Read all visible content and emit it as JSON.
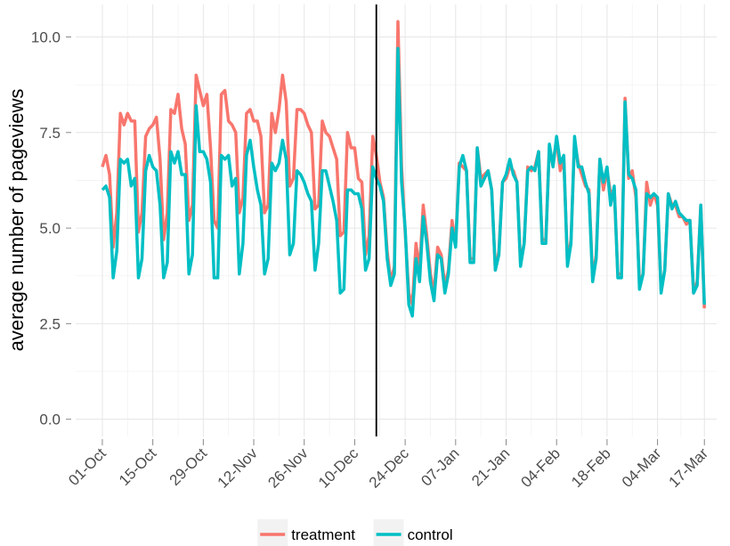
{
  "chart_data": {
    "type": "line",
    "y_label": "average number of pageviews",
    "x": [
      0,
      1,
      2,
      3,
      4,
      5,
      6,
      7,
      8,
      9,
      10,
      11,
      12,
      13,
      14,
      15,
      16,
      17,
      18,
      19,
      20,
      21,
      22,
      23,
      24,
      25,
      26,
      27,
      28,
      29,
      30,
      31,
      32,
      33,
      34,
      35,
      36,
      37,
      38,
      39,
      40,
      41,
      42,
      43,
      44,
      45,
      46,
      47,
      48,
      49,
      50,
      51,
      52,
      53,
      54,
      55,
      56,
      57,
      58,
      59,
      60,
      61,
      62,
      63,
      64,
      65,
      66,
      67,
      68,
      69,
      70,
      71,
      72,
      73,
      74,
      75,
      76,
      77,
      78,
      79,
      80,
      81,
      82,
      83,
      84,
      85,
      86,
      87,
      88,
      89,
      90,
      91,
      92,
      93,
      94,
      95,
      96,
      97,
      98,
      99,
      100,
      101,
      102,
      103,
      104,
      105,
      106,
      107,
      108,
      109,
      110,
      111,
      112,
      113,
      114,
      115,
      116,
      117,
      118,
      119,
      120,
      121,
      122,
      123,
      124,
      125,
      126,
      127,
      128,
      129,
      130,
      131,
      132,
      133,
      134,
      135,
      136,
      137,
      138,
      139,
      140,
      141,
      142,
      143,
      144,
      145,
      146,
      147,
      148,
      149,
      150,
      151,
      152,
      153,
      154,
      155,
      156,
      157,
      158,
      159,
      160,
      161,
      162,
      163,
      164,
      165,
      166,
      167
    ],
    "series": [
      {
        "name": "treatment",
        "color": "#F8766D",
        "values": [
          6.6,
          6.9,
          6.4,
          4.5,
          5.4,
          8.0,
          7.7,
          8.0,
          7.8,
          7.8,
          4.9,
          5.4,
          7.4,
          7.6,
          7.7,
          7.9,
          6.8,
          4.7,
          5.4,
          8.1,
          8.0,
          8.5,
          7.6,
          7.2,
          5.2,
          5.6,
          9.0,
          8.6,
          8.2,
          8.5,
          7.1,
          5.2,
          5.0,
          8.5,
          8.6,
          7.8,
          7.7,
          7.5,
          5.4,
          5.8,
          8.0,
          8.1,
          7.8,
          7.8,
          7.4,
          5.4,
          5.6,
          8.0,
          7.5,
          8.1,
          9.0,
          8.3,
          6.1,
          6.3,
          8.1,
          8.1,
          8.0,
          7.7,
          7.5,
          5.5,
          5.6,
          7.8,
          7.5,
          7.4,
          7.1,
          6.8,
          4.8,
          4.9,
          7.5,
          7.1,
          7.1,
          6.3,
          6.2,
          4.3,
          4.8,
          7.4,
          6.9,
          6.2,
          5.8,
          4.4,
          3.6,
          4.0,
          10.4,
          6.6,
          4.9,
          3.3,
          3.0,
          4.6,
          3.9,
          5.6,
          4.8,
          3.8,
          3.3,
          4.5,
          4.3,
          3.5,
          3.9,
          5.2,
          4.6,
          6.7,
          6.6,
          6.5,
          4.2,
          4.2,
          7.1,
          6.3,
          6.4,
          6.5,
          6.0,
          3.9,
          4.4,
          6.2,
          6.3,
          6.6,
          6.5,
          6.2,
          4.1,
          4.6,
          6.6,
          6.5,
          6.6,
          7.0,
          4.7,
          4.7,
          7.1,
          6.7,
          7.3,
          6.5,
          6.8,
          4.1,
          4.7,
          7.3,
          6.7,
          6.4,
          6.1,
          6.0,
          3.7,
          4.3,
          6.8,
          6.0,
          6.5,
          5.9,
          6.0,
          3.8,
          3.8,
          8.4,
          6.3,
          6.5,
          5.8,
          3.6,
          3.8,
          6.2,
          5.6,
          5.9,
          5.6,
          3.4,
          3.9,
          5.9,
          5.6,
          5.6,
          5.3,
          5.3,
          5.1,
          5.2,
          3.3,
          3.6,
          5.6,
          2.9
        ]
      },
      {
        "name": "control",
        "color": "#00BFC4",
        "values": [
          6.0,
          6.1,
          5.8,
          3.7,
          4.4,
          6.8,
          6.7,
          6.8,
          6.1,
          6.3,
          3.7,
          4.2,
          6.5,
          6.9,
          6.6,
          6.5,
          5.6,
          3.7,
          4.1,
          7.0,
          6.7,
          7.0,
          6.4,
          6.4,
          3.8,
          4.3,
          8.2,
          7.0,
          7.0,
          6.8,
          6.2,
          3.7,
          3.7,
          6.9,
          6.8,
          6.9,
          6.1,
          6.3,
          3.8,
          4.6,
          6.9,
          7.3,
          6.6,
          6.0,
          5.6,
          3.8,
          4.2,
          6.7,
          6.5,
          6.7,
          7.3,
          6.8,
          4.3,
          4.6,
          6.5,
          6.4,
          6.2,
          5.9,
          5.7,
          3.9,
          4.6,
          6.5,
          6.5,
          6.1,
          5.7,
          5.2,
          3.3,
          3.4,
          6.0,
          6.0,
          5.9,
          5.9,
          5.5,
          3.9,
          4.2,
          6.6,
          6.3,
          6.1,
          5.7,
          4.2,
          3.5,
          3.8,
          9.7,
          6.2,
          5.0,
          3.0,
          2.7,
          4.2,
          3.6,
          5.3,
          4.6,
          3.6,
          3.1,
          4.3,
          4.2,
          3.3,
          3.8,
          5.0,
          4.5,
          6.6,
          6.9,
          6.5,
          4.1,
          4.1,
          7.1,
          6.1,
          6.3,
          6.5,
          6.0,
          3.9,
          4.3,
          6.2,
          6.4,
          6.8,
          6.4,
          6.2,
          4.0,
          4.6,
          6.5,
          6.6,
          6.5,
          7.0,
          4.6,
          4.6,
          7.2,
          6.6,
          7.4,
          6.7,
          6.9,
          4.0,
          4.6,
          7.4,
          6.6,
          6.6,
          6.2,
          5.9,
          3.6,
          4.2,
          6.8,
          6.2,
          6.6,
          5.6,
          6.1,
          3.7,
          3.7,
          8.3,
          6.4,
          6.3,
          6.0,
          3.4,
          3.8,
          5.9,
          5.8,
          5.9,
          5.8,
          3.3,
          3.9,
          5.9,
          5.5,
          5.7,
          5.4,
          5.3,
          5.2,
          5.2,
          3.3,
          3.5,
          5.6,
          3.0
        ]
      }
    ],
    "vline_x": 76,
    "xlim": [
      -7.4,
      170.4
    ],
    "xticks": [
      {
        "value": 0,
        "label": "01-Oct"
      },
      {
        "value": 14,
        "label": "15-Oct"
      },
      {
        "value": 28,
        "label": "29-Oct"
      },
      {
        "value": 42,
        "label": "12-Nov"
      },
      {
        "value": 56,
        "label": "26-Nov"
      },
      {
        "value": 70,
        "label": "10-Dec"
      },
      {
        "value": 84,
        "label": "24-Dec"
      },
      {
        "value": 98,
        "label": "07-Jan"
      },
      {
        "value": 112,
        "label": "21-Jan"
      },
      {
        "value": 126,
        "label": "04-Feb"
      },
      {
        "value": 140,
        "label": "18-Feb"
      },
      {
        "value": 154,
        "label": "04-Mar"
      },
      {
        "value": 167,
        "label": "17-Mar"
      }
    ],
    "ylim": [
      -0.45,
      10.85
    ],
    "yticks": [
      {
        "value": 0,
        "label": "0.0"
      },
      {
        "value": 2.5,
        "label": "2.5"
      },
      {
        "value": 5,
        "label": "5.0"
      },
      {
        "value": 7.5,
        "label": "7.5"
      },
      {
        "value": 10,
        "label": "10.0"
      }
    ],
    "grid": true,
    "legend": "bottom"
  }
}
